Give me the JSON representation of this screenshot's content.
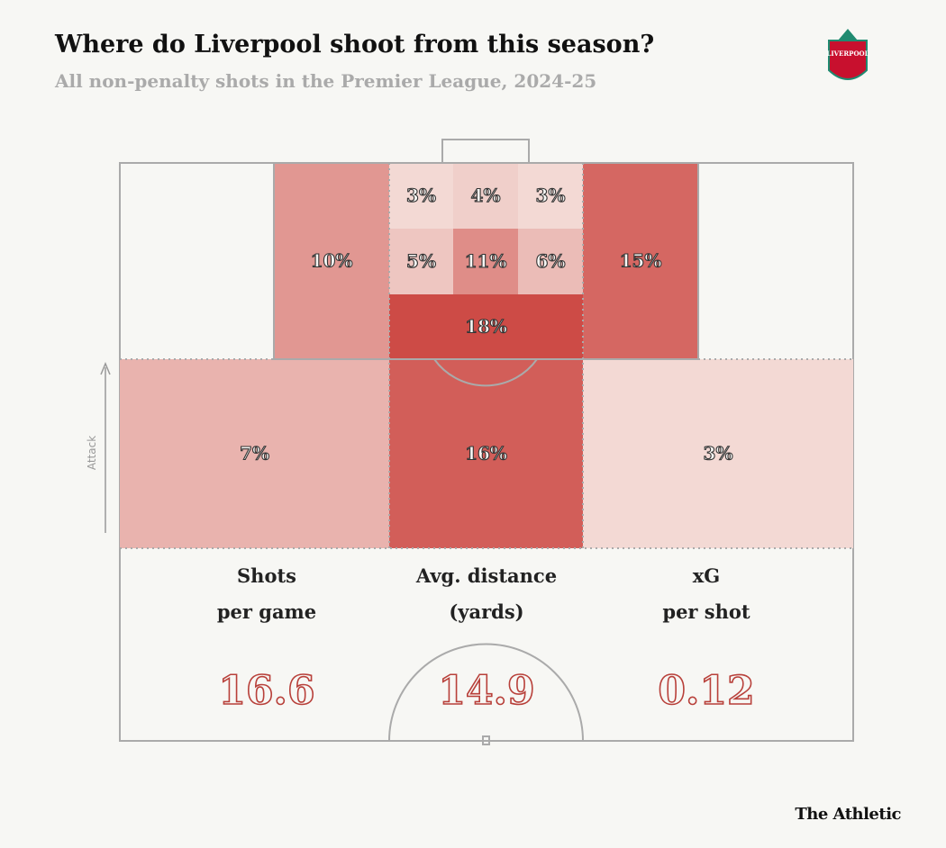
{
  "header": {
    "title": "Where do Liverpool shoot from this season?",
    "subtitle": "All non-penalty shots in the Premier League, 2024-25",
    "logo_text": "LIVERPOOL"
  },
  "zones": [
    {
      "value": 10,
      "label": "10%"
    },
    {
      "value": 3,
      "label": "3%"
    },
    {
      "value": 4,
      "label": "4%"
    },
    {
      "value": 3,
      "label": "3%"
    },
    {
      "value": 5,
      "label": "5%"
    },
    {
      "value": 11,
      "label": "11%"
    },
    {
      "value": 6,
      "label": "6%"
    },
    {
      "value": 18,
      "label": "18%"
    },
    {
      "value": 15,
      "label": "15%"
    },
    {
      "value": 7,
      "label": "7%"
    },
    {
      "value": 16,
      "label": "16%"
    },
    {
      "value": 3,
      "label": "3%"
    }
  ],
  "direction_label": "Attack",
  "stats": [
    {
      "label_lines": [
        "Shots",
        "per game"
      ],
      "value": 16.6
    },
    {
      "label_lines": [
        "Avg. distance",
        "(yards)"
      ],
      "value": 14.9
    },
    {
      "label_lines": [
        "xG",
        "per shot"
      ],
      "value": 0.12
    }
  ],
  "footer": {
    "source": "The Athletic"
  }
}
